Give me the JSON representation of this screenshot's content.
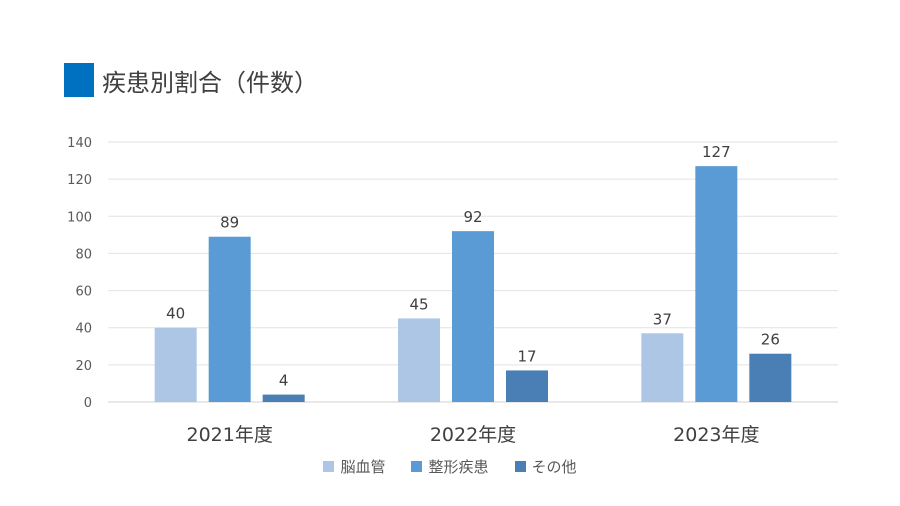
{
  "title": "疾患別割合（件数）",
  "accent_color": "#0070c0",
  "chart_data": {
    "type": "bar",
    "title": "疾患別割合（件数）",
    "categories": [
      "2021年度",
      "2022年度",
      "2023年度"
    ],
    "series": [
      {
        "name": "脳血管",
        "color": "#adc6e6",
        "values": [
          40,
          45,
          37
        ]
      },
      {
        "name": "整形疾患",
        "color": "#5b9bd5",
        "values": [
          89,
          92,
          127
        ]
      },
      {
        "name": "その他",
        "color": "#4a7fb5",
        "values": [
          4,
          17,
          26
        ]
      }
    ],
    "ylim": [
      0,
      140
    ],
    "yticks": [
      0,
      20,
      40,
      60,
      80,
      100,
      120,
      140
    ],
    "grid": true,
    "legend": "bottom",
    "data_labels": true
  }
}
